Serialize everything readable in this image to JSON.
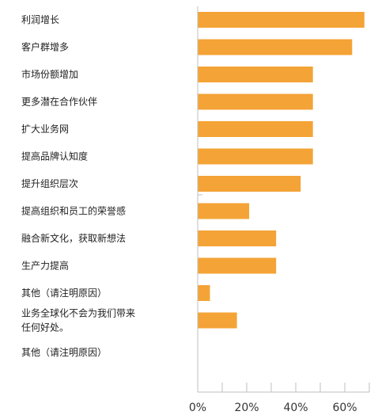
{
  "colors": {
    "bar": "#F4A336",
    "axis": "#BFBFBF",
    "text": "#222222"
  },
  "chart_data": {
    "type": "bar",
    "orientation": "horizontal",
    "categories": [
      [
        "利润增长"
      ],
      [
        "客户群增多"
      ],
      [
        "市场份额增加"
      ],
      [
        "更多潜在合作伙伴"
      ],
      [
        "扩大业务网"
      ],
      [
        "提高品牌认知度"
      ],
      [
        "提升组织层次"
      ],
      [
        "提高组织和员工的荣誉感"
      ],
      [
        "融合新文化，获取新想法"
      ],
      [
        "生产力提高"
      ],
      [
        "其他（请注明原因）"
      ],
      [
        "业务全球化不会为我们带来",
        "任何好处。"
      ],
      [
        "其他（请注明原因）"
      ]
    ],
    "values": [
      68,
      63,
      47,
      47,
      47,
      47,
      42,
      21,
      32,
      32,
      5,
      16,
      0
    ],
    "xlim": [
      0,
      70
    ],
    "xticks": [
      "0%",
      "20%",
      "40%",
      "60%"
    ],
    "tick_values": [
      0,
      20,
      40,
      60
    ],
    "minor_tick_step": 10,
    "grid": false,
    "legend": "none"
  }
}
